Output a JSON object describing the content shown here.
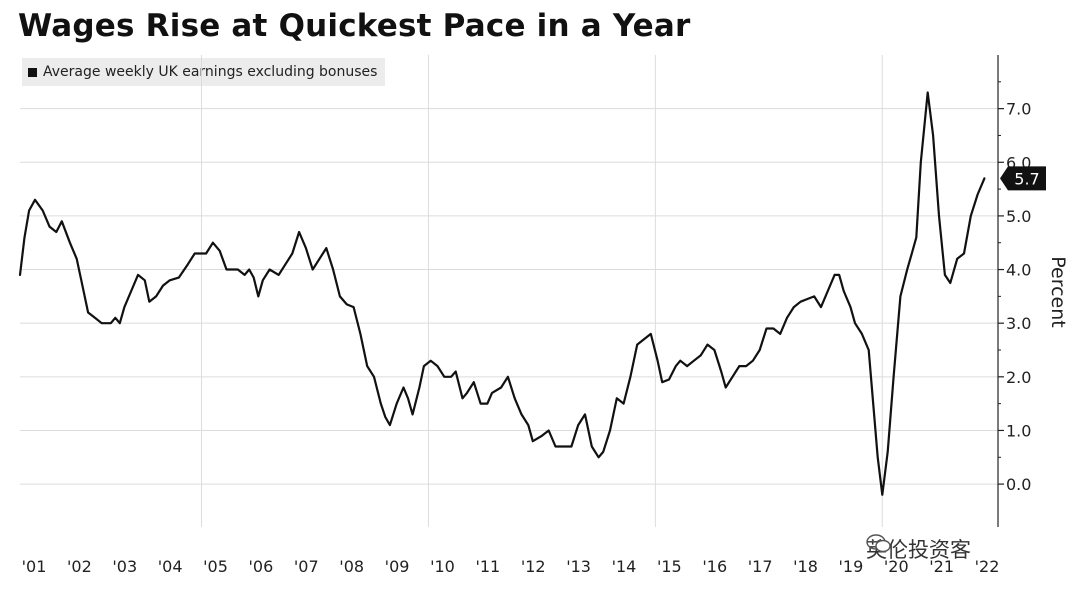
{
  "chart_data": {
    "type": "line",
    "title": "Wages Rise at Quickest Pace in a Year",
    "ylabel": "Percent",
    "xlabel": "",
    "ylim": [
      -0.8,
      8.0
    ],
    "y_ticks": [
      "0.0",
      "1.0",
      "2.0",
      "3.0",
      "4.0",
      "5.0",
      "6.0",
      "7.0"
    ],
    "x_range": [
      2001.0,
      2022.55
    ],
    "x_tick_labels": [
      "'01",
      "'02",
      "'03",
      "'04",
      "'05",
      "'06",
      "'07",
      "'08",
      "'09",
      "'10",
      "'11",
      "'12",
      "'13",
      "'14",
      "'15",
      "'16",
      "'17",
      "'18",
      "'19",
      "'20",
      "'21",
      "'22"
    ],
    "grid": true,
    "legend_position": "top-left",
    "series": [
      {
        "name": "Average weekly UK earnings excluding bonuses",
        "color": "#111111",
        "last_value_label": "5.7",
        "points": [
          [
            2001.0,
            3.9
          ],
          [
            2001.1,
            4.6
          ],
          [
            2001.2,
            5.1
          ],
          [
            2001.33,
            5.3
          ],
          [
            2001.5,
            5.1
          ],
          [
            2001.65,
            4.8
          ],
          [
            2001.8,
            4.7
          ],
          [
            2001.92,
            4.9
          ],
          [
            2002.1,
            4.5
          ],
          [
            2002.25,
            4.2
          ],
          [
            2002.35,
            3.8
          ],
          [
            2002.5,
            3.2
          ],
          [
            2002.65,
            3.1
          ],
          [
            2002.8,
            3.0
          ],
          [
            2003.0,
            3.0
          ],
          [
            2003.1,
            3.1
          ],
          [
            2003.2,
            3.0
          ],
          [
            2003.3,
            3.3
          ],
          [
            2003.45,
            3.6
          ],
          [
            2003.6,
            3.9
          ],
          [
            2003.75,
            3.8
          ],
          [
            2003.85,
            3.4
          ],
          [
            2004.0,
            3.5
          ],
          [
            2004.15,
            3.7
          ],
          [
            2004.3,
            3.8
          ],
          [
            2004.5,
            3.85
          ],
          [
            2004.7,
            4.1
          ],
          [
            2004.85,
            4.3
          ],
          [
            2005.0,
            4.3
          ],
          [
            2005.1,
            4.3
          ],
          [
            2005.25,
            4.5
          ],
          [
            2005.4,
            4.35
          ],
          [
            2005.55,
            4.0
          ],
          [
            2005.8,
            4.0
          ],
          [
            2005.95,
            3.9
          ],
          [
            2006.05,
            4.0
          ],
          [
            2006.15,
            3.85
          ],
          [
            2006.25,
            3.5
          ],
          [
            2006.35,
            3.8
          ],
          [
            2006.5,
            4.0
          ],
          [
            2006.7,
            3.9
          ],
          [
            2006.85,
            4.1
          ],
          [
            2007.0,
            4.3
          ],
          [
            2007.15,
            4.7
          ],
          [
            2007.3,
            4.4
          ],
          [
            2007.45,
            4.0
          ],
          [
            2007.6,
            4.2
          ],
          [
            2007.75,
            4.4
          ],
          [
            2007.9,
            4.0
          ],
          [
            2008.05,
            3.5
          ],
          [
            2008.2,
            3.35
          ],
          [
            2008.35,
            3.3
          ],
          [
            2008.5,
            2.8
          ],
          [
            2008.65,
            2.2
          ],
          [
            2008.8,
            2.0
          ],
          [
            2008.95,
            1.5
          ],
          [
            2009.05,
            1.25
          ],
          [
            2009.15,
            1.1
          ],
          [
            2009.3,
            1.5
          ],
          [
            2009.45,
            1.8
          ],
          [
            2009.55,
            1.6
          ],
          [
            2009.65,
            1.3
          ],
          [
            2009.8,
            1.8
          ],
          [
            2009.9,
            2.2
          ],
          [
            2010.05,
            2.3
          ],
          [
            2010.2,
            2.2
          ],
          [
            2010.35,
            2.0
          ],
          [
            2010.5,
            2.0
          ],
          [
            2010.6,
            2.1
          ],
          [
            2010.75,
            1.6
          ],
          [
            2010.85,
            1.7
          ],
          [
            2011.0,
            1.9
          ],
          [
            2011.15,
            1.5
          ],
          [
            2011.3,
            1.5
          ],
          [
            2011.4,
            1.7
          ],
          [
            2011.6,
            1.8
          ],
          [
            2011.75,
            2.0
          ],
          [
            2011.9,
            1.6
          ],
          [
            2012.05,
            1.3
          ],
          [
            2012.2,
            1.1
          ],
          [
            2012.3,
            0.8
          ],
          [
            2012.5,
            0.9
          ],
          [
            2012.65,
            1.0
          ],
          [
            2012.8,
            0.7
          ],
          [
            2013.0,
            0.7
          ],
          [
            2013.15,
            0.7
          ],
          [
            2013.3,
            1.1
          ],
          [
            2013.45,
            1.3
          ],
          [
            2013.6,
            0.7
          ],
          [
            2013.75,
            0.5
          ],
          [
            2013.85,
            0.6
          ],
          [
            2014.0,
            1.0
          ],
          [
            2014.15,
            1.6
          ],
          [
            2014.3,
            1.5
          ],
          [
            2014.45,
            2.0
          ],
          [
            2014.6,
            2.6
          ],
          [
            2014.75,
            2.7
          ],
          [
            2014.9,
            2.8
          ],
          [
            2015.05,
            2.3
          ],
          [
            2015.15,
            1.9
          ],
          [
            2015.3,
            1.95
          ],
          [
            2015.45,
            2.2
          ],
          [
            2015.55,
            2.3
          ],
          [
            2015.7,
            2.2
          ],
          [
            2015.85,
            2.3
          ],
          [
            2016.0,
            2.4
          ],
          [
            2016.15,
            2.6
          ],
          [
            2016.3,
            2.5
          ],
          [
            2016.45,
            2.1
          ],
          [
            2016.55,
            1.8
          ],
          [
            2016.7,
            2.0
          ],
          [
            2016.85,
            2.2
          ],
          [
            2017.0,
            2.2
          ],
          [
            2017.15,
            2.3
          ],
          [
            2017.3,
            2.5
          ],
          [
            2017.45,
            2.9
          ],
          [
            2017.6,
            2.9
          ],
          [
            2017.75,
            2.8
          ],
          [
            2017.9,
            3.1
          ],
          [
            2018.05,
            3.3
          ],
          [
            2018.2,
            3.4
          ],
          [
            2018.35,
            3.45
          ],
          [
            2018.5,
            3.5
          ],
          [
            2018.65,
            3.3
          ],
          [
            2018.8,
            3.6
          ],
          [
            2018.95,
            3.9
          ],
          [
            2019.05,
            3.9
          ],
          [
            2019.15,
            3.6
          ],
          [
            2019.3,
            3.3
          ],
          [
            2019.4,
            3.0
          ],
          [
            2019.55,
            2.8
          ],
          [
            2019.7,
            2.5
          ],
          [
            2019.8,
            1.5
          ],
          [
            2019.9,
            0.5
          ],
          [
            2020.0,
            -0.2
          ],
          [
            2020.12,
            0.6
          ],
          [
            2020.25,
            2.0
          ],
          [
            2020.4,
            3.5
          ],
          [
            2020.55,
            4.0
          ],
          [
            2020.65,
            4.3
          ],
          [
            2020.75,
            4.6
          ],
          [
            2020.85,
            6.0
          ],
          [
            2021.0,
            7.3
          ],
          [
            2021.12,
            6.5
          ],
          [
            2021.25,
            5.0
          ],
          [
            2021.38,
            3.9
          ],
          [
            2021.5,
            3.75
          ],
          [
            2021.65,
            4.2
          ],
          [
            2021.8,
            4.3
          ],
          [
            2021.95,
            5.0
          ],
          [
            2022.1,
            5.4
          ],
          [
            2022.25,
            5.7
          ]
        ]
      }
    ]
  },
  "legend_label": "Average weekly UK earnings excluding bonuses",
  "watermark_text": "英伦投资客"
}
